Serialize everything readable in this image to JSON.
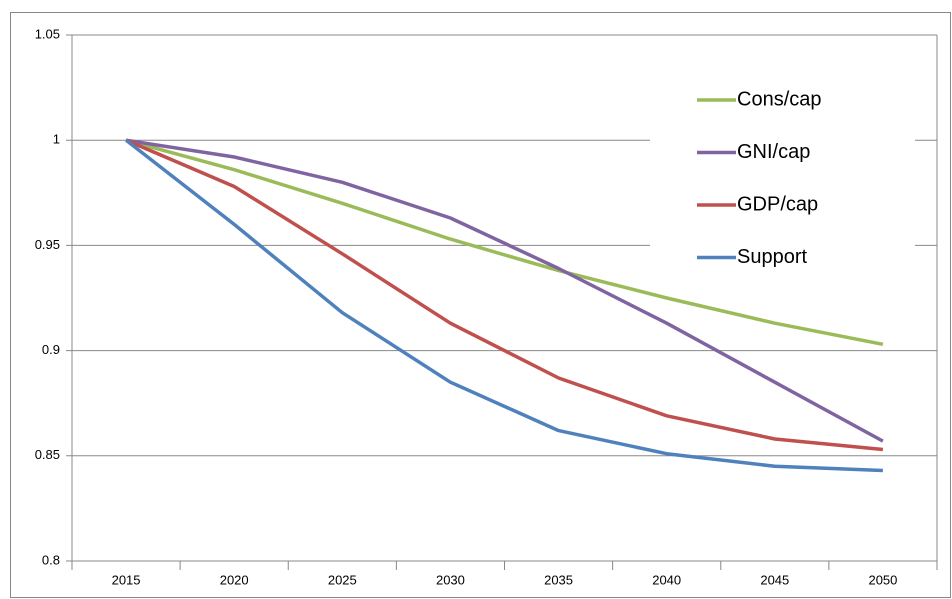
{
  "chart_data": {
    "type": "line",
    "categories": [
      "2015",
      "2020",
      "2025",
      "2030",
      "2035",
      "2040",
      "2045",
      "2050"
    ],
    "series": [
      {
        "name": "Cons/cap",
        "color": "#9bbb59",
        "values": [
          1.0,
          0.986,
          0.97,
          0.953,
          0.938,
          0.925,
          0.913,
          0.903
        ]
      },
      {
        "name": "GNI/cap",
        "color": "#8064a2",
        "values": [
          1.0,
          0.992,
          0.98,
          0.963,
          0.939,
          0.913,
          0.885,
          0.857
        ]
      },
      {
        "name": "GDP/cap",
        "color": "#c0504d",
        "values": [
          1.0,
          0.978,
          0.946,
          0.913,
          0.887,
          0.869,
          0.858,
          0.853
        ]
      },
      {
        "name": "Support",
        "color": "#4f81bd",
        "values": [
          1.0,
          0.96,
          0.918,
          0.885,
          0.862,
          0.851,
          0.845,
          0.843
        ]
      }
    ],
    "ylim": [
      0.8,
      1.05
    ],
    "yticks": [
      0.8,
      0.85,
      0.9,
      0.95,
      1,
      1.05
    ],
    "grid": true,
    "legend": "right"
  }
}
